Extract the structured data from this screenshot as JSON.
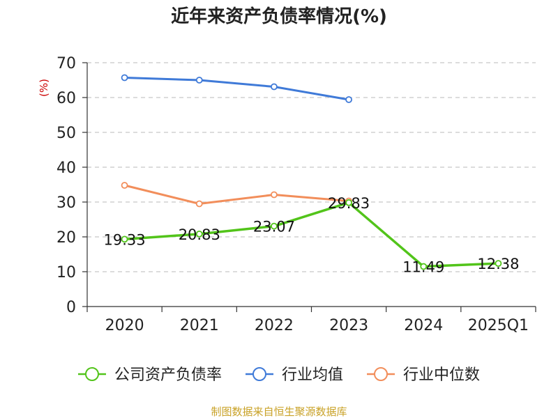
{
  "chart_data": {
    "type": "line",
    "title": "近年来资产负债率情况(%)",
    "ylabel": "(%)",
    "xlabel": "",
    "categories": [
      "2020",
      "2021",
      "2022",
      "2023",
      "2024",
      "2025Q1"
    ],
    "ylim": [
      0,
      70
    ],
    "yticks": [
      0,
      10,
      20,
      30,
      40,
      50,
      60,
      70
    ],
    "grid": true,
    "legend_position": "bottom",
    "series": [
      {
        "name": "公司资产负债率",
        "color": "#52c41a",
        "values": [
          19.33,
          20.83,
          23.07,
          29.83,
          11.49,
          12.38
        ],
        "show_labels": true
      },
      {
        "name": "行业均值",
        "color": "#3f7ad8",
        "values": [
          65.7,
          65.0,
          63.1,
          59.4,
          null,
          null
        ],
        "show_labels": false
      },
      {
        "name": "行业中位数",
        "color": "#f28e5b",
        "values": [
          34.8,
          29.5,
          32.1,
          30.3,
          null,
          null
        ],
        "show_labels": false
      }
    ]
  },
  "source_text": "制图数据来自恒生聚源数据库"
}
